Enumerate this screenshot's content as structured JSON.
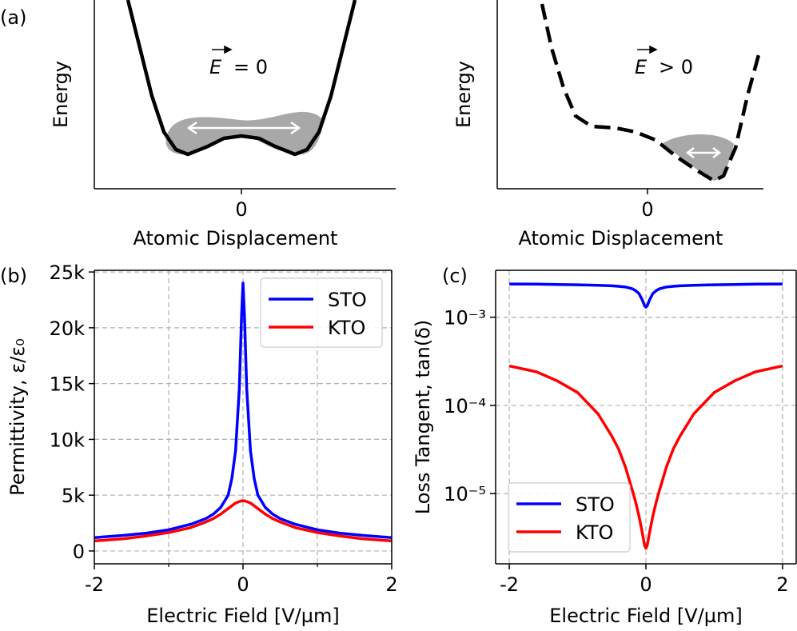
{
  "chart_data": [
    {
      "type": "line",
      "panel_label": "(a)",
      "xlabel": "Atomic Displacement",
      "ylabel": "Energy",
      "annotation": {
        "symbol": "E",
        "relation": "= 0"
      },
      "x": [
        -1.42,
        -1.27,
        -1.12,
        -0.97,
        -0.82,
        -0.67,
        -0.42,
        -0.22,
        0,
        0.22,
        0.42,
        0.67,
        0.82,
        0.97,
        1.12,
        1.27,
        1.42
      ],
      "series": [
        {
          "color": "#000000",
          "linestyle": "solid",
          "values": [
            2.36,
            1.76,
            1.16,
            0.71,
            0.49,
            0.43,
            0.53,
            0.63,
            0.66,
            0.63,
            0.53,
            0.43,
            0.49,
            0.71,
            1.16,
            1.76,
            2.36
          ]
        }
      ],
      "xlim": [
        -1.84,
        1.93
      ],
      "ylim": [
        0,
        2.36
      ],
      "xticks": [
        0
      ],
      "grid": false
    },
    {
      "type": "line",
      "xlabel": "Atomic Displacement",
      "ylabel": "Energy",
      "annotation": {
        "symbol": "E",
        "relation": "> 0"
      },
      "x": [
        -1.32,
        -1.2,
        -1.05,
        -0.9,
        -0.7,
        -0.4,
        -0.15,
        0.1,
        0.35,
        0.6,
        0.83,
        0.95,
        1.1,
        1.25,
        1.4
      ],
      "series": [
        {
          "color": "#000000",
          "linestyle": "dashed",
          "values": [
            2.31,
            1.76,
            1.26,
            0.91,
            0.78,
            0.76,
            0.71,
            0.61,
            0.41,
            0.24,
            0.1,
            0.16,
            0.51,
            1.16,
            1.71
          ]
        }
      ],
      "xlim": [
        -1.88,
        1.45
      ],
      "ylim": [
        0,
        2.36
      ],
      "xticks": [
        0
      ],
      "grid": false
    },
    {
      "type": "line",
      "panel_label": "(b)",
      "xlabel": "Electric Field [V/µm]",
      "ylabel": "Permittivity, ε/ε₀",
      "x": [
        -2,
        -1.6,
        -1.3,
        -1,
        -0.7,
        -0.5,
        -0.4,
        -0.3,
        -0.2,
        -0.15,
        -0.1,
        -0.05,
        -0.02,
        0,
        0.02,
        0.05,
        0.1,
        0.15,
        0.2,
        0.3,
        0.4,
        0.5,
        0.7,
        1,
        1.3,
        1.6,
        2
      ],
      "series": [
        {
          "name": "STO",
          "color": "#0000ff",
          "linestyle": "solid",
          "values": [
            1200,
            1400,
            1600,
            1900,
            2400,
            2900,
            3300,
            3900,
            5000,
            6500,
            9000,
            14500,
            21000,
            24000,
            21000,
            14500,
            9000,
            6500,
            5000,
            3900,
            3300,
            2900,
            2400,
            1900,
            1600,
            1400,
            1200
          ]
        },
        {
          "name": "KTO",
          "color": "#ff0000",
          "linestyle": "solid",
          "values": [
            900,
            1100,
            1350,
            1650,
            2100,
            2600,
            2900,
            3300,
            3800,
            4050,
            4300,
            4430,
            4490,
            4500,
            4490,
            4430,
            4300,
            4050,
            3800,
            3300,
            2900,
            2600,
            2100,
            1650,
            1350,
            1100,
            900
          ]
        }
      ],
      "xlim": [
        -2,
        2
      ],
      "ylim": [
        -1150,
        25150
      ],
      "xticks": [
        -2,
        0,
        2
      ],
      "xminor_ticks": [
        -1,
        1
      ],
      "yticks": [
        0,
        {
          "value": 5000,
          "label": "5k"
        },
        {
          "value": 10000,
          "label": "10k"
        },
        {
          "value": 15000,
          "label": "15k"
        },
        {
          "value": 20000,
          "label": "20k"
        },
        {
          "value": 25000,
          "label": "25k"
        }
      ],
      "grid": true,
      "legend": "upper right"
    },
    {
      "type": "line",
      "panel_label": "(c)",
      "xlabel": "Electric Field [V/µm]",
      "ylabel": "Loss Tangent, tan(δ)",
      "x": [
        -2,
        -1.6,
        -1.3,
        -1,
        -0.7,
        -0.5,
        -0.4,
        -0.3,
        -0.2,
        -0.15,
        -0.1,
        -0.05,
        -0.02,
        0,
        0.02,
        0.05,
        0.1,
        0.15,
        0.2,
        0.3,
        0.4,
        0.5,
        0.7,
        1,
        1.3,
        1.6,
        2
      ],
      "series": [
        {
          "name": "STO",
          "color": "#0000ff",
          "linestyle": "solid",
          "values": [
            0.00238,
            0.00237,
            0.00235,
            0.00233,
            0.0023,
            0.00227,
            0.00224,
            0.0022,
            0.0021,
            0.002,
            0.00185,
            0.00155,
            0.00135,
            0.0013,
            0.00135,
            0.00155,
            0.00185,
            0.002,
            0.0021,
            0.0022,
            0.00224,
            0.00227,
            0.0023,
            0.00233,
            0.00235,
            0.00237,
            0.00238
          ]
        },
        {
          "name": "KTO",
          "color": "#ff0000",
          "linestyle": "solid",
          "values": [
            0.00028,
            0.00024,
            0.00019,
            0.00014,
            8e-05,
            4.5e-05,
            3.2e-05,
            2e-05,
            1.1e-05,
            8e-06,
            5.5e-06,
            3.5e-06,
            2.6e-06,
            2.4e-06,
            2.6e-06,
            3.5e-06,
            5.5e-06,
            8e-06,
            1.1e-05,
            2e-05,
            3.2e-05,
            4.5e-05,
            8e-05,
            0.00014,
            0.00019,
            0.00024,
            0.00028
          ]
        }
      ],
      "xlim": [
        -2.2,
        2.2
      ],
      "ylim": [
        1.6e-06,
        0.0034
      ],
      "log_y": true,
      "xticks": [
        -2,
        0,
        2
      ],
      "yticks": [
        {
          "value": 1e-05,
          "label": "10⁻⁵"
        },
        {
          "value": 0.0001,
          "label": "10⁻⁴"
        },
        {
          "value": 0.001,
          "label": "10⁻³"
        }
      ],
      "grid": true,
      "legend": "lower left"
    }
  ]
}
